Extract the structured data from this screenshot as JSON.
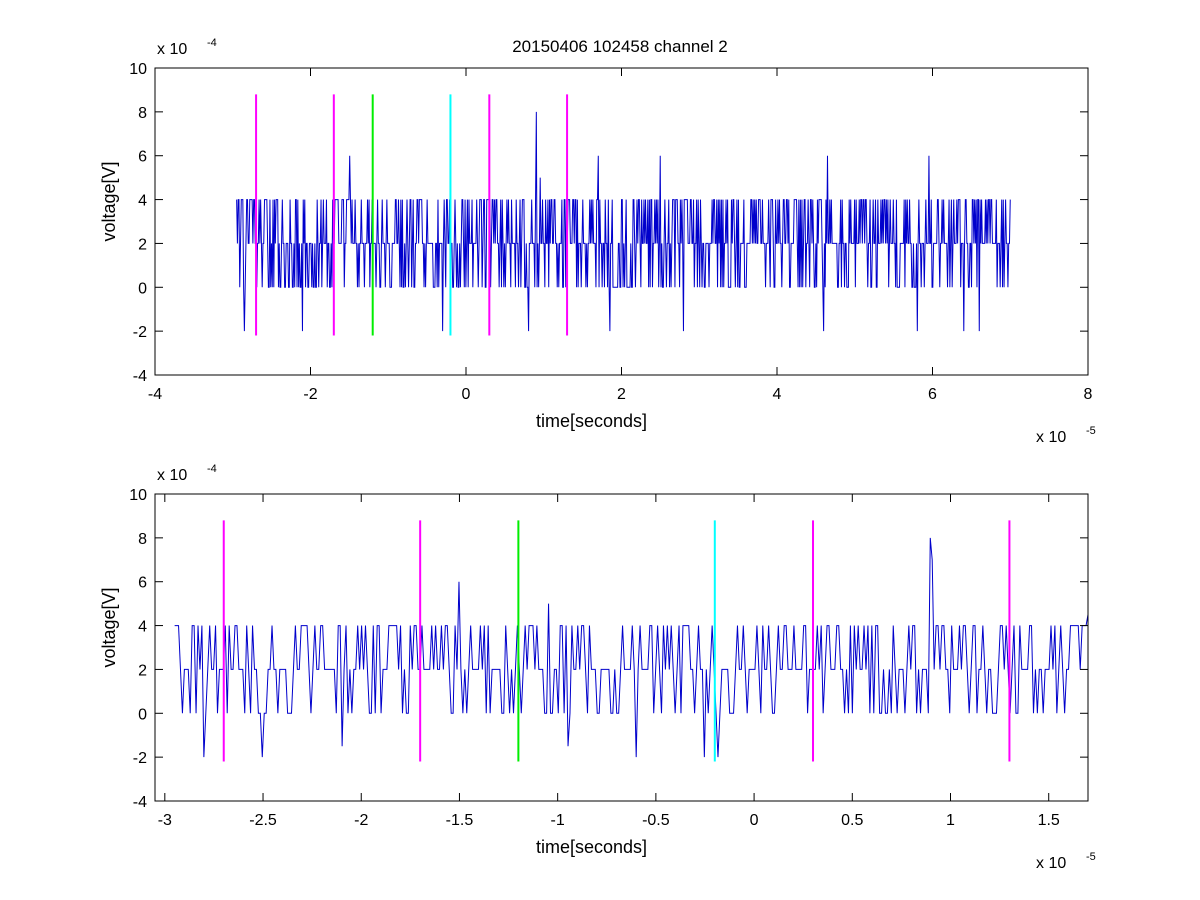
{
  "title": "20150406 102458 channel 2",
  "chart_data": [
    {
      "type": "line",
      "title": "20150406 102458 channel 2",
      "xlabel": "time[seconds]",
      "ylabel": "voltage[V]",
      "x_exponent": "x 10",
      "x_exponent_power": "-5",
      "y_exponent": "x 10",
      "y_exponent_power": "-4",
      "xlim": [
        -4,
        8
      ],
      "ylim": [
        -4,
        10
      ],
      "xticks": [
        -4,
        -2,
        0,
        2,
        4,
        6,
        8
      ],
      "xtick_labels": [
        "-4",
        "-2",
        "0",
        "2",
        "4",
        "6",
        "8"
      ],
      "yticks": [
        -4,
        -2,
        0,
        2,
        4,
        6,
        8,
        10
      ],
      "ytick_labels": [
        "-4",
        "-2",
        "0",
        "2",
        "4",
        "6",
        "8",
        "10"
      ],
      "grid": false,
      "signal": {
        "color": "#0000cc",
        "x_start": -2.95,
        "x_end": 7.0,
        "samples": 1000,
        "levels": [
          -2,
          0,
          2,
          4,
          6,
          8
        ],
        "peaks": [
          {
            "x": -1.5,
            "y": 6
          },
          {
            "x": 0.9,
            "y": 8
          },
          {
            "x": 1.7,
            "y": 6
          },
          {
            "x": 2.5,
            "y": 6
          },
          {
            "x": 4.65,
            "y": 6
          },
          {
            "x": 5.95,
            "y": 6
          },
          {
            "x": 0.95,
            "y": 5
          }
        ],
        "troughs": [
          {
            "x": -2.85,
            "y": -2
          },
          {
            "x": -2.1,
            "y": -2
          },
          {
            "x": -0.3,
            "y": -2
          },
          {
            "x": 0.8,
            "y": -2
          },
          {
            "x": 1.85,
            "y": -2
          },
          {
            "x": 2.8,
            "y": -2
          },
          {
            "x": 4.6,
            "y": -2
          },
          {
            "x": 5.8,
            "y": -2
          },
          {
            "x": 6.4,
            "y": -2
          },
          {
            "x": 6.6,
            "y": -2
          }
        ]
      },
      "markers": [
        {
          "x": -2.7,
          "y_min": -2.2,
          "y_max": 8.8,
          "color": "#ff00ff"
        },
        {
          "x": -1.7,
          "y_min": -2.2,
          "y_max": 8.8,
          "color": "#ff00ff"
        },
        {
          "x": -1.2,
          "y_min": -2.2,
          "y_max": 8.8,
          "color": "#00ee00"
        },
        {
          "x": -0.2,
          "y_min": -2.2,
          "y_max": 8.8,
          "color": "#00ffff"
        },
        {
          "x": 0.3,
          "y_min": -2.2,
          "y_max": 8.8,
          "color": "#ff00ff"
        },
        {
          "x": 1.3,
          "y_min": -2.2,
          "y_max": 8.8,
          "color": "#ff00ff"
        }
      ]
    },
    {
      "type": "line",
      "title": "",
      "xlabel": "time[seconds]",
      "ylabel": "voltage[V]",
      "x_exponent": "x 10",
      "x_exponent_power": "-5",
      "y_exponent": "x 10",
      "y_exponent_power": "-4",
      "xlim": [
        -3.05,
        1.7
      ],
      "ylim": [
        -4,
        10
      ],
      "xticks": [
        -3,
        -2.5,
        -2,
        -1.5,
        -1,
        -0.5,
        0,
        0.5,
        1,
        1.5
      ],
      "xtick_labels": [
        "-3",
        "-2.5",
        "-2",
        "-1.5",
        "-1",
        "-0.5",
        "0",
        "0.5",
        "1",
        "1.5"
      ],
      "yticks": [
        -4,
        -2,
        0,
        2,
        4,
        6,
        8,
        10
      ],
      "ytick_labels": [
        "-4",
        "-2",
        "0",
        "2",
        "4",
        "6",
        "8",
        "10"
      ],
      "grid": false,
      "signal": {
        "color": "#0000cc",
        "x_start": -2.95,
        "x_end": 1.7,
        "samples": 470,
        "levels": [
          -2,
          0,
          2,
          4,
          6,
          8
        ],
        "peaks": [
          {
            "x": -1.5,
            "y": 6
          },
          {
            "x": 0.9,
            "y": 8
          },
          {
            "x": -1.05,
            "y": 5
          },
          {
            "x": 1.7,
            "y": 4.5
          },
          {
            "x": 0.91,
            "y": 7
          }
        ],
        "troughs": [
          {
            "x": -2.8,
            "y": -2
          },
          {
            "x": -2.5,
            "y": -2
          },
          {
            "x": -2.1,
            "y": -1.5
          },
          {
            "x": -0.95,
            "y": -1.5
          },
          {
            "x": -0.6,
            "y": -2
          },
          {
            "x": -0.25,
            "y": -2
          },
          {
            "x": -0.18,
            "y": -2
          }
        ]
      },
      "markers": [
        {
          "x": -2.7,
          "y_min": -2.2,
          "y_max": 8.8,
          "color": "#ff00ff"
        },
        {
          "x": -1.7,
          "y_min": -2.2,
          "y_max": 8.8,
          "color": "#ff00ff"
        },
        {
          "x": -1.2,
          "y_min": -2.2,
          "y_max": 8.8,
          "color": "#00ee00"
        },
        {
          "x": -0.2,
          "y_min": -2.2,
          "y_max": 8.8,
          "color": "#00ffff"
        },
        {
          "x": 0.3,
          "y_min": -2.2,
          "y_max": 8.8,
          "color": "#ff00ff"
        },
        {
          "x": 1.3,
          "y_min": -2.2,
          "y_max": 8.8,
          "color": "#ff00ff"
        }
      ]
    }
  ]
}
